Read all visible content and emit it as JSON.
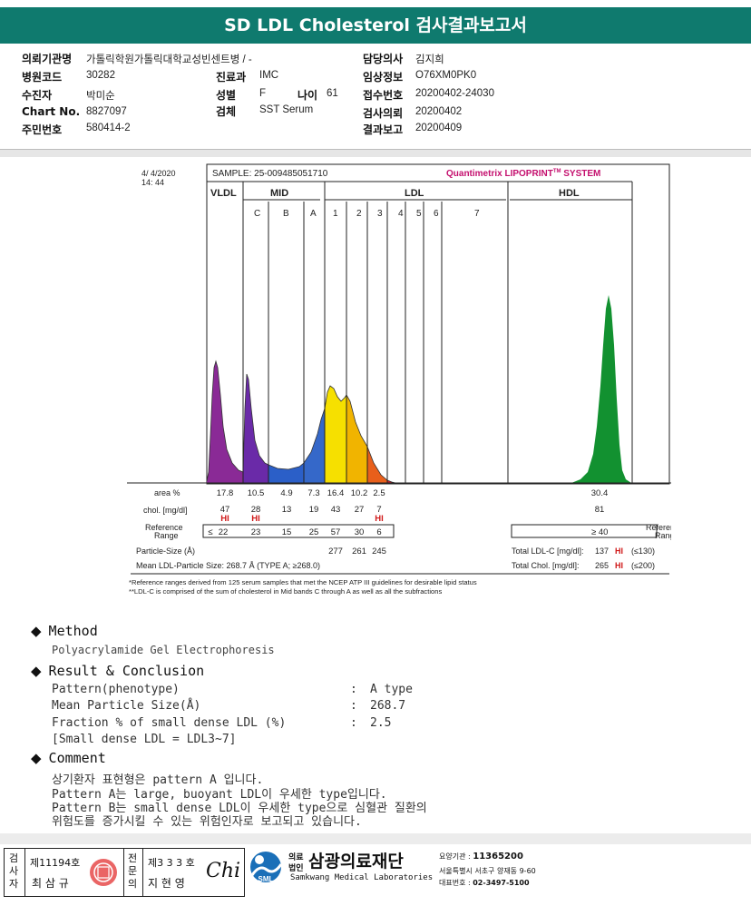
{
  "title": "SD LDL Cholesterol 검사결과보고서",
  "info": {
    "left": [
      {
        "label": "의뢰기관명",
        "value": "가톨릭학원가톨릭대학교성빈센트병 / -"
      },
      {
        "label": "병원코드",
        "value": "30282"
      },
      {
        "label": "수진자",
        "value": "박미순"
      },
      {
        "label": "Chart No.",
        "value": "8827097"
      },
      {
        "label": "주민번호",
        "value": "580414-2"
      }
    ],
    "mid": [
      {
        "label": "진료과",
        "value": "IMC"
      },
      {
        "label": "성별",
        "value": "F"
      },
      {
        "label": "검체",
        "value": "SST Serum"
      }
    ],
    "age_label": "나이",
    "age_value": "61",
    "right": [
      {
        "label": "담당의사",
        "value": "김지희"
      },
      {
        "label": "임상정보",
        "value": "O76XM0PK0"
      },
      {
        "label": "접수번호",
        "value": "20200402-24030"
      },
      {
        "label": "검사의뢰",
        "value": "20200402"
      },
      {
        "label": "결과보고",
        "value": "20200409"
      }
    ]
  },
  "report": {
    "date": "4/  4/2020",
    "time": "14: 44",
    "sample": "SAMPLE:  25-009485051710",
    "brand_a": "Quantimetrix ",
    "brand_b": "LIPOPRINT",
    "brand_tm": "TM",
    "brand_c": " SYSTEM",
    "sec_vldl": "VLDL",
    "sec_mid": "MID",
    "sec_ldl": "LDL",
    "sec_hdl": "HDL",
    "sub_labels": [
      "C",
      "B",
      "A",
      "1",
      "2",
      "3",
      "4",
      "5",
      "6",
      "7"
    ],
    "area_label": "area %",
    "area_values": [
      "17.8",
      "10.5",
      "4.9",
      "7.3",
      "16.4",
      "10.2",
      "2.5"
    ],
    "area_hdl": "30.4",
    "chol_label": "chol. [mg/dl]",
    "chol_values": [
      "47",
      "28",
      "13",
      "19",
      "43",
      "27",
      "7"
    ],
    "chol_hi": [
      "HI",
      "HI",
      "",
      "",
      "",
      "",
      "HI"
    ],
    "chol_hdl": "81",
    "ref_label_1": "Reference",
    "ref_label_2": "Range",
    "ref_le": "≤",
    "ref_values": [
      "22",
      "23",
      "15",
      "25",
      "57",
      "30",
      "6"
    ],
    "ref_hdl": "≥ 40",
    "ref_right_1": "Reference",
    "ref_right_2": "Range",
    "ps_label": "Particle-Size (Å)",
    "ps_values": [
      "277",
      "261",
      "245"
    ],
    "mean_ps": "Mean LDL-Particle Size:   268.7 Å   (TYPE A; ≥268.0)",
    "total_ldl_label": "Total LDL-C [mg/dl]:",
    "total_ldl_value": "137",
    "total_ldl_flag": "HI",
    "total_ldl_ref": "(≤130)",
    "total_chol_label": "Total Chol. [mg/dl]:",
    "total_chol_value": "265",
    "total_chol_flag": "HI",
    "total_chol_ref": "(≤200)",
    "note1": "*Reference ranges derived from 125 serum samples that met the NCEP ATP III guidelines for desirable lipid status",
    "note2": "**LDL-C is comprised of the sum of cholesterol in Mid bands C through A as well as all the subfractions",
    "colors": {
      "vldl": "#8a2a96",
      "midc": "#6a2aa8",
      "midb": "#2b5fc8",
      "mida": "#3568c9",
      "ldl1": "#f6e000",
      "ldl2": "#f1b400",
      "ldl3": "#e85f1b",
      "ldl4": "#d81b2a",
      "hdl": "#129130",
      "brand": "#c40f6e"
    }
  },
  "sections": {
    "method_title": "Method",
    "method_text": "Polyacrylamide Gel Electrophoresis",
    "result_title": "Result & Conclusion",
    "rows": [
      {
        "label": "Pattern(phenotype)",
        "sep": ":",
        "value": "A type"
      },
      {
        "label": "Mean Particle Size(Å)",
        "sep": ":",
        "value": "268.7"
      },
      {
        "label": "Fraction % of small dense LDL (%)",
        "sep": ":",
        "value": "2.5"
      }
    ],
    "small_dense": "[Small dense LDL = LDL3~7]",
    "comment_title": "Comment",
    "comments": [
      "상기환자 표현형은 pattern A 입니다.",
      "Pattern A는 large, buoyant LDL이 우세한 type입니다.",
      "Pattern B는 small dense LDL이 우세한 type으로 심혈관 질환의",
      "위험도를 증가시킬 수 있는 위험인자로 보고되고 있습니다."
    ]
  },
  "footer": {
    "examiner_label": "검사자",
    "examiner_no": "제11194호",
    "examiner_name": "최 삼 규",
    "specialist_label": "전문의",
    "specialist_no": "제3 3 3 호",
    "specialist_name": "지 현 영",
    "signature": "Chi",
    "logo_abbr": "SML",
    "corp_small_1": "의료",
    "corp_small_2": "법인",
    "corp_name": "삼광의료재단",
    "corp_en": "Samkwang Medical Laboratories",
    "code_label": "요양기관 : ",
    "code_value": "11365200",
    "address": "서울특별시 서초구 양재동 9-60",
    "phone_label": "대표번호 : ",
    "phone_value": "02-3497-5100"
  }
}
